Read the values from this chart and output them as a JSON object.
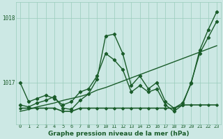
{
  "title": "Graphe pression niveau de la mer (hPa)",
  "bg_color": "#cce8e4",
  "grid_color": "#99ccbb",
  "line_color": "#1a5c2a",
  "x_labels": [
    "0",
    "1",
    "2",
    "3",
    "4",
    "5",
    "6",
    "7",
    "8",
    "9",
    "10",
    "11",
    "12",
    "13",
    "14",
    "15",
    "16",
    "17",
    "18",
    "19",
    "20",
    "21",
    "22",
    "23"
  ],
  "ylim": [
    1016.35,
    1018.25
  ],
  "yticks": [
    1017,
    1018
  ],
  "series": {
    "line_flat": [
      1016.6,
      1016.6,
      1016.6,
      1016.6,
      1016.6,
      1016.55,
      1016.55,
      1016.6,
      1016.6,
      1016.6,
      1016.6,
      1016.6,
      1016.6,
      1016.6,
      1016.6,
      1016.6,
      1016.6,
      1016.6,
      1016.6,
      1016.65,
      1016.65,
      1016.65,
      1016.65,
      1016.65
    ],
    "line_trend": [
      1016.55,
      1016.58,
      1016.62,
      1016.65,
      1016.68,
      1016.72,
      1016.75,
      1016.78,
      1016.82,
      1016.88,
      1016.92,
      1016.97,
      1017.02,
      1017.07,
      1017.12,
      1017.17,
      1017.22,
      1017.27,
      1017.32,
      1017.37,
      1017.42,
      1017.47,
      1017.52,
      1017.57
    ],
    "line_mid": [
      1017.0,
      1016.7,
      1016.75,
      1016.8,
      1016.75,
      1016.65,
      1016.7,
      1016.85,
      1016.9,
      1017.1,
      1017.45,
      1017.35,
      1017.2,
      1016.85,
      1016.95,
      1016.85,
      1016.9,
      1016.65,
      1016.55,
      1016.65,
      1017.0,
      1017.45,
      1017.7,
      1017.95
    ],
    "line_volatile": [
      1016.65,
      1016.62,
      1016.68,
      1016.72,
      1016.78,
      1016.6,
      1016.58,
      1016.72,
      1016.82,
      1017.05,
      1017.72,
      1017.75,
      1017.45,
      1016.95,
      1017.1,
      1016.9,
      1017.0,
      1016.7,
      1016.6,
      1016.68,
      1016.98,
      1017.5,
      1017.82,
      1018.1
    ]
  }
}
